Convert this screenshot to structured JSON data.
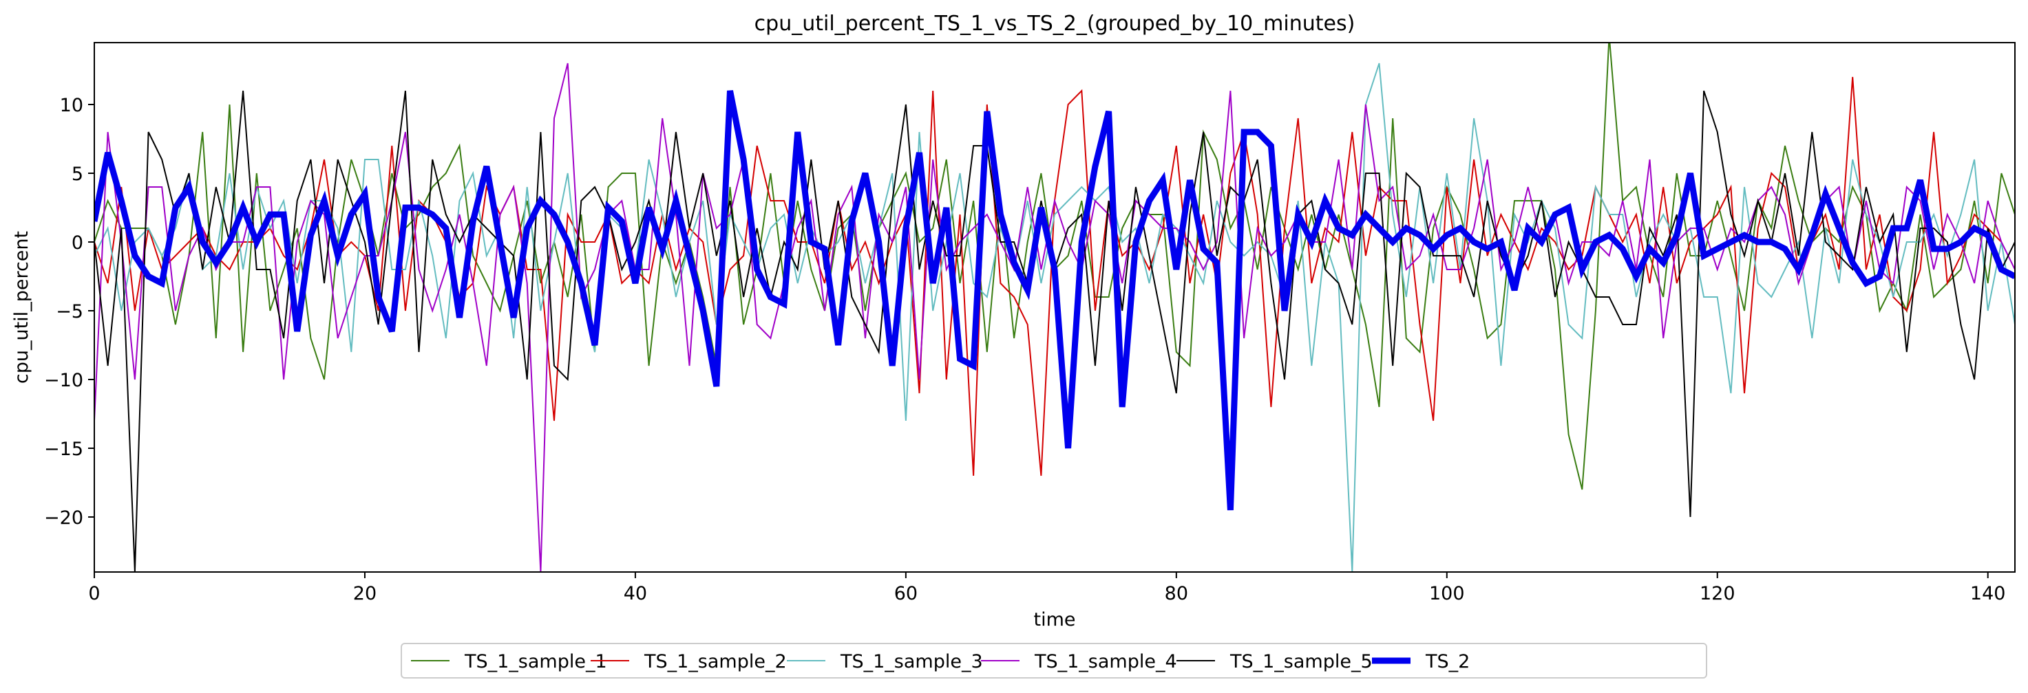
{
  "chart_data": {
    "type": "line",
    "title": "cpu_util_percent_TS_1_vs_TS_2_(grouped_by_10_minutes)",
    "xlabel": "time",
    "ylabel": "cpu_util_percent",
    "xlim": [
      0,
      142
    ],
    "ylim": [
      -24,
      14.5
    ],
    "xticks": [
      0,
      20,
      40,
      60,
      80,
      100,
      120,
      140
    ],
    "yticks": [
      -20,
      -15,
      -10,
      -5,
      0,
      5,
      10
    ],
    "ytick_labels": [
      "−20",
      "−15",
      "−10",
      "−5",
      "0",
      "5",
      "10"
    ],
    "grid": false,
    "legend_position": "bottom-center",
    "series": [
      {
        "name": "TS_1_sample_1",
        "color": "#3a7d12",
        "linewidth": 2,
        "values": [
          0,
          3,
          1,
          1,
          1,
          -1,
          -6,
          -1,
          8,
          -7,
          10,
          -8,
          5,
          -5,
          -2,
          1,
          -7,
          -10,
          0,
          6,
          3,
          -1,
          5,
          1,
          2,
          4,
          5,
          7,
          -1,
          -3,
          -5,
          -1,
          3,
          -3,
          0,
          -4,
          2,
          -8,
          4,
          5,
          5,
          -9,
          0,
          -3,
          0,
          -4,
          -9,
          4,
          -6,
          -2,
          5,
          -3,
          3,
          -2,
          -5,
          1,
          2,
          -5,
          1,
          3,
          5,
          0,
          1,
          6,
          -3,
          3,
          -8,
          3,
          -7,
          0,
          5,
          -2,
          -1,
          3,
          -4,
          -4,
          1,
          3,
          2,
          2,
          -8,
          -9,
          8,
          6,
          1,
          3,
          -2,
          4,
          1,
          -2,
          2,
          -2,
          2,
          -2,
          -6,
          -12,
          9,
          -7,
          -8,
          1,
          4,
          2,
          -2,
          -7,
          -6,
          3,
          3,
          3,
          -2,
          -14,
          -18,
          -5,
          15,
          3,
          4,
          -1,
          -4,
          5,
          -1,
          -1,
          3,
          -1,
          -5,
          3,
          1,
          7,
          3,
          0,
          1,
          0,
          4,
          2,
          -5,
          -3,
          -5,
          2,
          -4,
          -3,
          -2,
          3,
          -3,
          5,
          2
        ]
      },
      {
        "name": "TS_1_sample_2",
        "color": "#d40000",
        "linewidth": 2,
        "values": [
          0,
          -3,
          4,
          -5,
          1,
          -2,
          -1,
          0,
          1,
          -1,
          -2,
          0,
          0,
          1,
          -1,
          -2,
          1,
          6,
          -1,
          0,
          -1,
          -5,
          7,
          -5,
          3,
          2,
          0,
          -4,
          -3,
          4,
          2,
          4,
          -2,
          -2,
          -13,
          2,
          0,
          0,
          2,
          -3,
          -2,
          -3,
          2,
          -2,
          1,
          0,
          -6,
          -2,
          -1,
          7,
          3,
          3,
          0,
          0,
          -3,
          3,
          -2,
          0,
          -3,
          0,
          2,
          -11,
          11,
          -10,
          2,
          -17,
          10,
          -3,
          -4,
          -6,
          -17,
          3,
          10,
          11,
          -5,
          3,
          -1,
          0,
          -2,
          1,
          7,
          -3,
          2,
          -3,
          5,
          8,
          2,
          -12,
          1,
          9,
          -3,
          1,
          0,
          8,
          -1,
          4,
          3,
          3,
          -6,
          -13,
          4,
          -3,
          6,
          -1,
          2,
          0,
          -2,
          1,
          0,
          -2,
          -1,
          4,
          2,
          0,
          2,
          -3,
          4,
          -3,
          0,
          1,
          2,
          4,
          -11,
          1,
          5,
          4,
          -2,
          0,
          2,
          -2,
          12,
          -2,
          2,
          -4,
          -5,
          -2,
          8,
          -3,
          -1,
          2,
          1,
          0
        ]
      },
      {
        "name": "TS_1_sample_3",
        "color": "#63bcc0",
        "linewidth": 2,
        "values": [
          -1,
          1,
          -5,
          0,
          1,
          -1,
          1,
          5,
          -2,
          -1,
          5,
          -2,
          4,
          1,
          3,
          -3,
          3,
          3,
          1,
          -8,
          6,
          6,
          -2,
          -2,
          3,
          -1,
          -7,
          3,
          5,
          -1,
          1,
          -7,
          4,
          -5,
          0,
          5,
          -4,
          -8,
          2,
          1,
          -2,
          6,
          2,
          -4,
          0,
          3,
          -6,
          2,
          0,
          -2,
          1,
          2,
          -3,
          1,
          -1,
          0,
          2,
          -3,
          1,
          5,
          -13,
          8,
          -5,
          0,
          5,
          -3,
          -4,
          1,
          -2,
          3,
          -3,
          2,
          3,
          4,
          3,
          4,
          0,
          1,
          -3,
          2,
          1,
          -1,
          -3,
          3,
          0,
          -1,
          0,
          -1,
          -4,
          3,
          -9,
          0,
          -3,
          -24,
          10,
          13,
          2,
          -4,
          4,
          -3,
          5,
          -2,
          9,
          3,
          -9,
          2,
          0,
          3,
          1,
          -6,
          -7,
          4,
          2,
          2,
          -4,
          0,
          2,
          0,
          1,
          -4,
          -4,
          -11,
          4,
          -3,
          -4,
          -2,
          0,
          -7,
          1,
          -3,
          6,
          2,
          0,
          -4,
          0,
          0,
          2,
          -1,
          2,
          6,
          -5,
          0,
          -6
        ]
      },
      {
        "name": "TS_1_sample_4",
        "color": "#a000c8",
        "linewidth": 2,
        "values": [
          -13,
          8,
          0,
          -10,
          4,
          4,
          -5,
          -1,
          1,
          -2,
          0,
          0,
          4,
          4,
          -10,
          0,
          3,
          2,
          -7,
          -4,
          -1,
          -1,
          3,
          8,
          -2,
          -5,
          -2,
          2,
          -3,
          -9,
          2,
          4,
          -3,
          -24,
          9,
          13,
          -4,
          -2,
          2,
          3,
          -2,
          -2,
          9,
          2,
          -9,
          5,
          1,
          2,
          6,
          -6,
          -7,
          -3,
          1,
          3,
          -5,
          2,
          4,
          -7,
          2,
          0,
          4,
          -10,
          6,
          -2,
          0,
          1,
          2,
          0,
          -2,
          4,
          -2,
          3,
          0,
          -2,
          3,
          2,
          -3,
          3,
          2,
          1,
          1,
          0,
          -2,
          0,
          11,
          -7,
          1,
          -1,
          0,
          2,
          0,
          0,
          6,
          -2,
          10,
          3,
          4,
          -2,
          -1,
          2,
          -2,
          -2,
          1,
          6,
          -2,
          0,
          4,
          0,
          2,
          -3,
          0,
          0,
          -1,
          3,
          -2,
          6,
          -7,
          0,
          1,
          1,
          -2,
          1,
          0,
          3,
          4,
          2,
          -3,
          0,
          3,
          4,
          -2,
          3,
          -2,
          -3,
          4,
          3,
          -2,
          2,
          0,
          -3,
          3,
          0,
          -2
        ]
      },
      {
        "name": "TS_1_sample_5",
        "color": "#000000",
        "linewidth": 2,
        "values": [
          0,
          -9,
          1,
          -24,
          8,
          6,
          2,
          5,
          -2,
          4,
          0,
          11,
          -2,
          -2,
          -7,
          3,
          6,
          -3,
          6,
          3,
          0,
          -6,
          3,
          11,
          -8,
          6,
          2,
          0,
          2,
          1,
          0,
          -1,
          -10,
          8,
          -9,
          -10,
          3,
          4,
          2,
          -2,
          0,
          3,
          -1,
          8,
          1,
          5,
          -1,
          3,
          -4,
          1,
          -4,
          0,
          -2,
          6,
          -2,
          3,
          -4,
          -6,
          -8,
          3,
          10,
          -2,
          3,
          -1,
          -1,
          7,
          7,
          0,
          0,
          -3,
          3,
          -2,
          1,
          2,
          -9,
          3,
          -5,
          4,
          -1,
          -6,
          -11,
          2,
          8,
          -1,
          4,
          3,
          6,
          -3,
          -10,
          2,
          3,
          -2,
          -3,
          -6,
          5,
          5,
          -9,
          5,
          4,
          -1,
          -1,
          -1,
          -4,
          3,
          -1,
          -3,
          -1,
          3,
          -4,
          0,
          -2,
          -4,
          -4,
          -6,
          -6,
          1,
          -1,
          2,
          -20,
          11,
          8,
          2,
          -1,
          3,
          0,
          5,
          -1,
          8,
          0,
          -1,
          -2,
          4,
          0,
          2,
          -8,
          1,
          1,
          0,
          -6,
          -10,
          1,
          -2,
          0
        ]
      },
      {
        "name": "TS_2",
        "color": "#0000ee",
        "linewidth": 9,
        "values": [
          1.5,
          6.5,
          3,
          -1,
          -2.5,
          -3,
          2.5,
          4,
          0,
          -1.5,
          0,
          2.5,
          0,
          2,
          2,
          -6.5,
          0.5,
          3,
          -1,
          2,
          3.5,
          -4,
          -6.5,
          2.5,
          2.5,
          2,
          1,
          -5.5,
          1.5,
          5.5,
          0,
          -5.5,
          1,
          3,
          2,
          0,
          -3,
          -7.5,
          2.5,
          1.5,
          -3,
          2.5,
          -0.5,
          3,
          -1,
          -5,
          -10.5,
          11,
          6,
          -2,
          -4,
          -4.5,
          8,
          0,
          -0.5,
          -7.5,
          1.5,
          5,
          0,
          -9,
          1,
          6.5,
          -3,
          2.5,
          -8.5,
          -9,
          9.5,
          2,
          -1.5,
          -3.5,
          2.5,
          -2,
          -15,
          0,
          5.5,
          9.5,
          -12,
          0,
          3,
          4.5,
          -2,
          4.5,
          -0.5,
          -1.5,
          -19.5,
          8,
          8,
          7,
          -5,
          2,
          0,
          3,
          1,
          0.5,
          2,
          1,
          0,
          1,
          0.5,
          -0.5,
          0.5,
          1,
          0,
          -0.5,
          0,
          -3.5,
          1,
          0,
          2,
          2.5,
          -2,
          0,
          0.5,
          -0.5,
          -2.5,
          -0.5,
          -1.5,
          0.5,
          5,
          -1,
          -0.5,
          0,
          0.5,
          0,
          0,
          -0.5,
          -2,
          0.5,
          3.5,
          1,
          -1.5,
          -3,
          -2.5,
          1,
          1,
          4.5,
          -0.5,
          -0.5,
          0,
          1,
          0.5,
          -2,
          -2.5
        ]
      }
    ]
  }
}
